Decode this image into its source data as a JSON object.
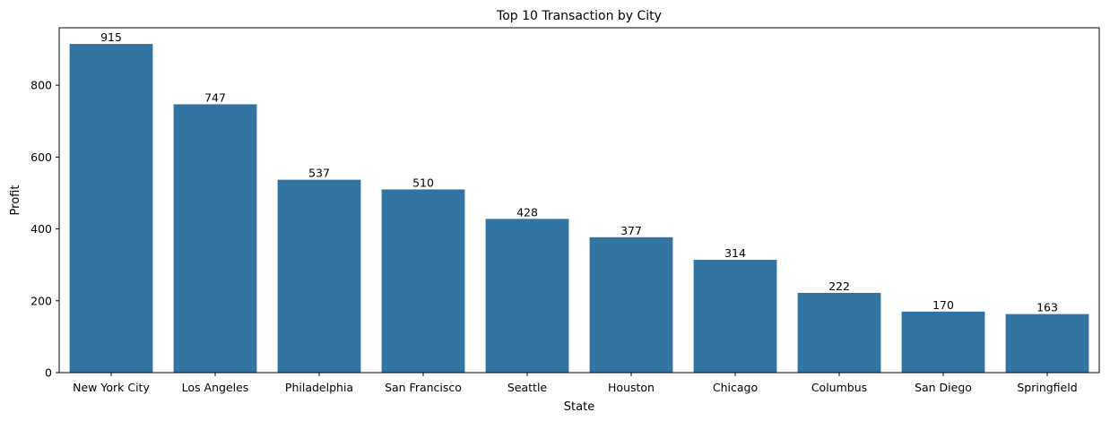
{
  "chart_data": {
    "type": "bar",
    "title": "Top 10 Transaction by City",
    "xlabel": "State",
    "ylabel": "Profit",
    "categories": [
      "New York City",
      "Los Angeles",
      "Philadelphia",
      "San Francisco",
      "Seattle",
      "Houston",
      "Chicago",
      "Columbus",
      "San Diego",
      "Springfield"
    ],
    "values": [
      915,
      747,
      537,
      510,
      428,
      377,
      314,
      222,
      170,
      163
    ],
    "ylim": [
      0,
      960
    ],
    "yticks": [
      0,
      200,
      400,
      600,
      800
    ],
    "grid": false,
    "legend": "none",
    "bar_color": "#3274a1"
  }
}
